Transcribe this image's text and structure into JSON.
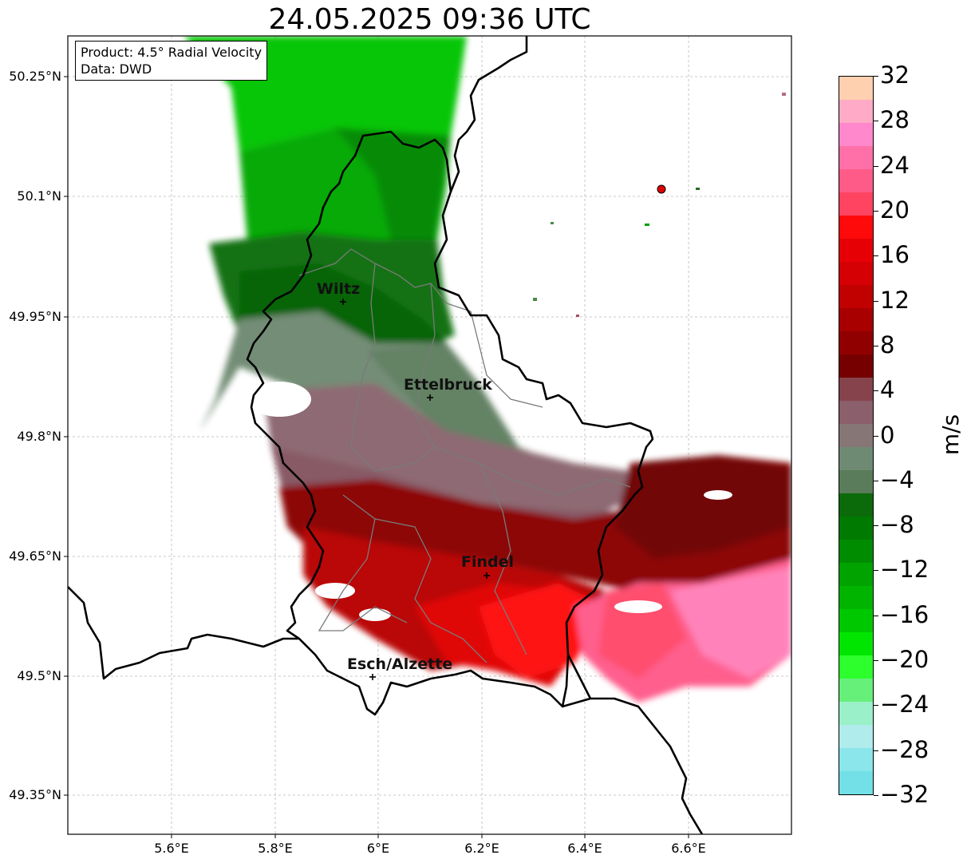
{
  "title": "24.05.2025 09:36 UTC",
  "info": {
    "product": "Product: 4.5° Radial Velocity",
    "data_source": "Data: DWD"
  },
  "lat_labels": [
    "50.25°N",
    "50.1°N",
    "49.95°N",
    "49.8°N",
    "49.65°N",
    "49.5°N",
    "49.35°N"
  ],
  "lon_labels": [
    "5.6°E",
    "5.8°E",
    "6°E",
    "6.2°E",
    "6.4°E",
    "6.6°E"
  ],
  "cities": [
    {
      "name": "Wiltz"
    },
    {
      "name": "Ettelbruck"
    },
    {
      "name": "Findel"
    },
    {
      "name": "Esch/Alzette"
    }
  ],
  "colorbar": {
    "unit": "m/s",
    "ticks": [
      "32",
      "28",
      "24",
      "20",
      "16",
      "12",
      "8",
      "4",
      "0",
      "−4",
      "−8",
      "−12",
      "−16",
      "−20",
      "−24",
      "−28",
      "−32"
    ],
    "colors_top_to_bottom": [
      "#ffd0b0",
      "#ffaac6",
      "#ff88cc",
      "#ff70a8",
      "#ff5b88",
      "#ff4462",
      "#ff0a0a",
      "#e60006",
      "#d40004",
      "#c10000",
      "#a80000",
      "#900000",
      "#760000",
      "#86434c",
      "#8b5f6c",
      "#867675",
      "#6f8a72",
      "#5a7c5a",
      "#0b6b0b",
      "#007a00",
      "#008c00",
      "#00a300",
      "#00b400",
      "#00c800",
      "#00e600",
      "#2cff2c",
      "#66f07a",
      "#9af0c8",
      "#b0ecec",
      "#8ae6ea",
      "#72e0e6"
    ]
  }
}
